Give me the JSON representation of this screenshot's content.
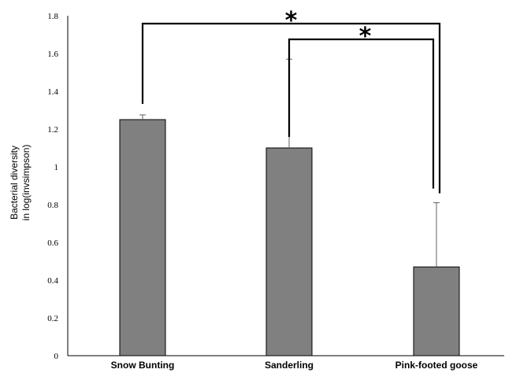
{
  "chart_data": {
    "type": "bar",
    "categories": [
      "Snow Bunting",
      "Sanderling",
      "Pink-footed goose"
    ],
    "values": [
      1.25,
      1.1,
      0.47
    ],
    "error_upper": [
      0.025,
      0.47,
      0.34
    ],
    "ylabel_lines": [
      "Bacterial diversity",
      "in log(invsimpson)"
    ],
    "xlabel": "",
    "title": "",
    "ylim": [
      0,
      1.8
    ],
    "yticks": [
      {
        "value": 0,
        "label": "0"
      },
      {
        "value": 0.2,
        "label": "0.2"
      },
      {
        "value": 0.4,
        "label": "0.4"
      },
      {
        "value": 0.6,
        "label": "0.6"
      },
      {
        "value": 0.8,
        "label": "0.8"
      },
      {
        "value": 1.0,
        "label": "1"
      },
      {
        "value": 1.2,
        "label": "1.2"
      },
      {
        "value": 1.4,
        "label": "1.4"
      },
      {
        "value": 1.6,
        "label": "1.6"
      },
      {
        "value": 1.8,
        "label": "1.8"
      }
    ],
    "grid": false,
    "legend": "none",
    "bar_color": "#808080",
    "significance": [
      {
        "from": "Snow Bunting",
        "to": "Pink-footed goose",
        "label": "*"
      },
      {
        "from": "Sanderling",
        "to": "Pink-footed goose",
        "label": "*"
      }
    ]
  }
}
